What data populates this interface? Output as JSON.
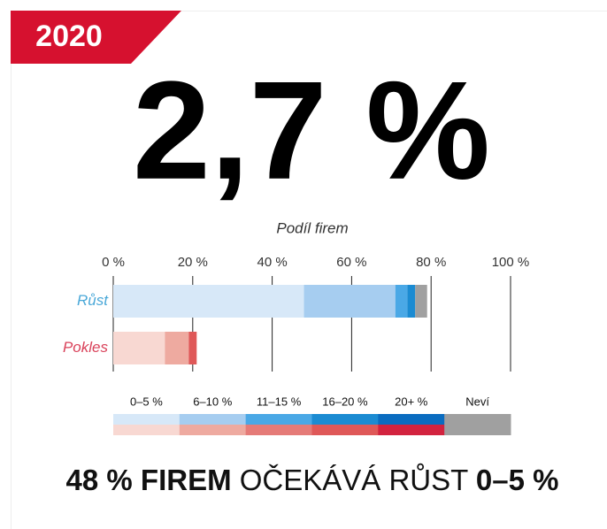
{
  "tag": "2020",
  "headline": "2,7 %",
  "chart_data": {
    "type": "stacked-bar-horizontal",
    "title": "Podíl firem",
    "categories": [
      "Růst",
      "Pokles"
    ],
    "category_colors": [
      "#4aa8d8",
      "#d9425a"
    ],
    "series": [
      {
        "name": "0–5 %",
        "colors": [
          "#d7e8f8",
          "#f8d8d2"
        ],
        "values": [
          48,
          13
        ]
      },
      {
        "name": "6–10 %",
        "colors": [
          "#a6cdf0",
          "#eeaaa0"
        ],
        "values": [
          23,
          6
        ]
      },
      {
        "name": "11–15 %",
        "colors": [
          "#4aa8e6",
          "#e57b78"
        ],
        "values": [
          3,
          0
        ]
      },
      {
        "name": "16–20 %",
        "colors": [
          "#1b8bd2",
          "#df5858"
        ],
        "values": [
          2,
          2
        ]
      },
      {
        "name": "20+ %",
        "colors": [
          "#0a6cc0",
          "#d2233f"
        ],
        "values": [
          0,
          0
        ]
      },
      {
        "name": "Neví",
        "colors": [
          "#a0a0a0",
          "#a0a0a0"
        ],
        "values": [
          3,
          0
        ]
      }
    ],
    "xlim": [
      0,
      100
    ],
    "xticks": [
      {
        "value": 0,
        "label": "0 %"
      },
      {
        "value": 20,
        "label": "20 %"
      },
      {
        "value": 40,
        "label": "40 %"
      },
      {
        "value": 60,
        "label": "60 %"
      },
      {
        "value": 80,
        "label": "80 %"
      },
      {
        "value": 100,
        "label": "100 %"
      }
    ],
    "grid": true
  },
  "footer": {
    "parts": [
      {
        "text": "48 % FIREM",
        "bold": true
      },
      {
        "text": " OČEKÁVÁ RŮST ",
        "bold": false
      },
      {
        "text": "0–5 %",
        "bold": true
      }
    ]
  }
}
